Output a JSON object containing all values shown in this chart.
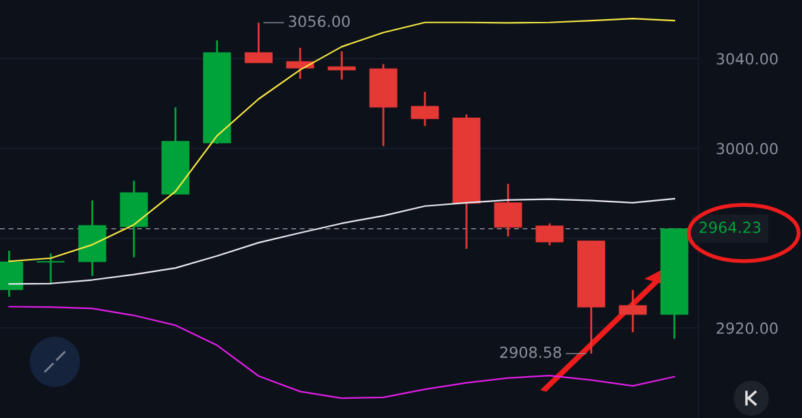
{
  "chart_data": {
    "type": "candlestick",
    "categories": [
      null,
      null,
      null,
      null,
      null,
      null,
      null,
      null,
      null,
      null,
      null,
      null,
      null,
      null,
      null,
      null,
      null
    ],
    "ohlc": [
      [
        2937.0,
        2954.4,
        2933.9,
        2949.5
      ],
      [
        2949.3,
        2953.2,
        2939.7,
        2949.6
      ],
      [
        2949.5,
        2976.8,
        2943.2,
        2965.7
      ],
      [
        2965.1,
        2985.6,
        2951.5,
        2980.3
      ],
      [
        2979.6,
        3018.3,
        2979.6,
        3003.2
      ],
      [
        3002.4,
        3048.1,
        3002.0,
        3042.7
      ],
      [
        3042.7,
        3056.0,
        3038.1,
        3038.1
      ],
      [
        3038.7,
        3044.8,
        3031.0,
        3035.7
      ],
      [
        3036.4,
        3043.2,
        3030.7,
        3034.9
      ],
      [
        3035.5,
        3037.6,
        3001.0,
        3018.3
      ],
      [
        3018.8,
        3025.2,
        3010.0,
        3013.2
      ],
      [
        3013.6,
        3015.1,
        2955.3,
        2975.5
      ],
      [
        2975.8,
        2984.2,
        2960.8,
        2964.8
      ],
      [
        2965.5,
        2966.6,
        2956.8,
        2958.3
      ],
      [
        2958.8,
        2958.8,
        2908.58,
        2929.3
      ],
      [
        2930.0,
        2936.9,
        2918.1,
        2926.0
      ],
      [
        2926.0,
        2964.5,
        2915.2,
        2964.23
      ]
    ],
    "colors": [
      "#00a33a",
      "#00a33a",
      "#00a33a",
      "#00a33a",
      "#00a33a",
      "#00a33a",
      "#e53935",
      "#e53935",
      "#e53935",
      "#e53935",
      "#e53935",
      "#e53935",
      "#e53935",
      "#e53935",
      "#e53935",
      "#e53935",
      "#00a33a"
    ],
    "series": [
      {
        "type": "line",
        "color": "#f5e642",
        "values": [
          2949.7,
          2951.1,
          2957.1,
          2966.0,
          2980.8,
          3005.6,
          3022.0,
          3035.0,
          3045.3,
          3051.6,
          3056.1,
          3056.1,
          3055.9,
          3056.1,
          3056.9,
          3057.8,
          3056.9
        ]
      },
      {
        "type": "line",
        "color": "#e6e6ee",
        "values": [
          2939.6,
          2939.8,
          2941.4,
          2943.8,
          2946.7,
          2952.1,
          2958.0,
          2962.4,
          2966.6,
          2970.0,
          2974.3,
          2975.8,
          2977.0,
          2977.4,
          2976.8,
          2975.8,
          2977.6
        ]
      },
      {
        "type": "line",
        "color": "#e01ee6",
        "values": [
          2929.5,
          2929.3,
          2928.7,
          2925.6,
          2921.2,
          2912.3,
          2898.6,
          2891.7,
          2888.7,
          2889.1,
          2892.7,
          2895.6,
          2897.7,
          2898.8,
          2896.8,
          2894.2,
          2898.3
        ]
      }
    ],
    "ylim": [
      2879.9,
      3066.1
    ],
    "yticks": [
      {
        "value": 2920,
        "label": "2920.00"
      },
      {
        "value": 2960,
        "label": null
      },
      {
        "value": 3000,
        "label": "3000.00"
      },
      {
        "value": 3040,
        "label": "3040.00"
      }
    ],
    "grid": "y",
    "ref_lines": [
      {
        "axis": "y",
        "value": 2964.23,
        "label": "2964.23",
        "color": "#8a8f99",
        "line_style": "dashed"
      }
    ],
    "annotations": [
      "3056.00",
      "2908.58"
    ]
  }
}
